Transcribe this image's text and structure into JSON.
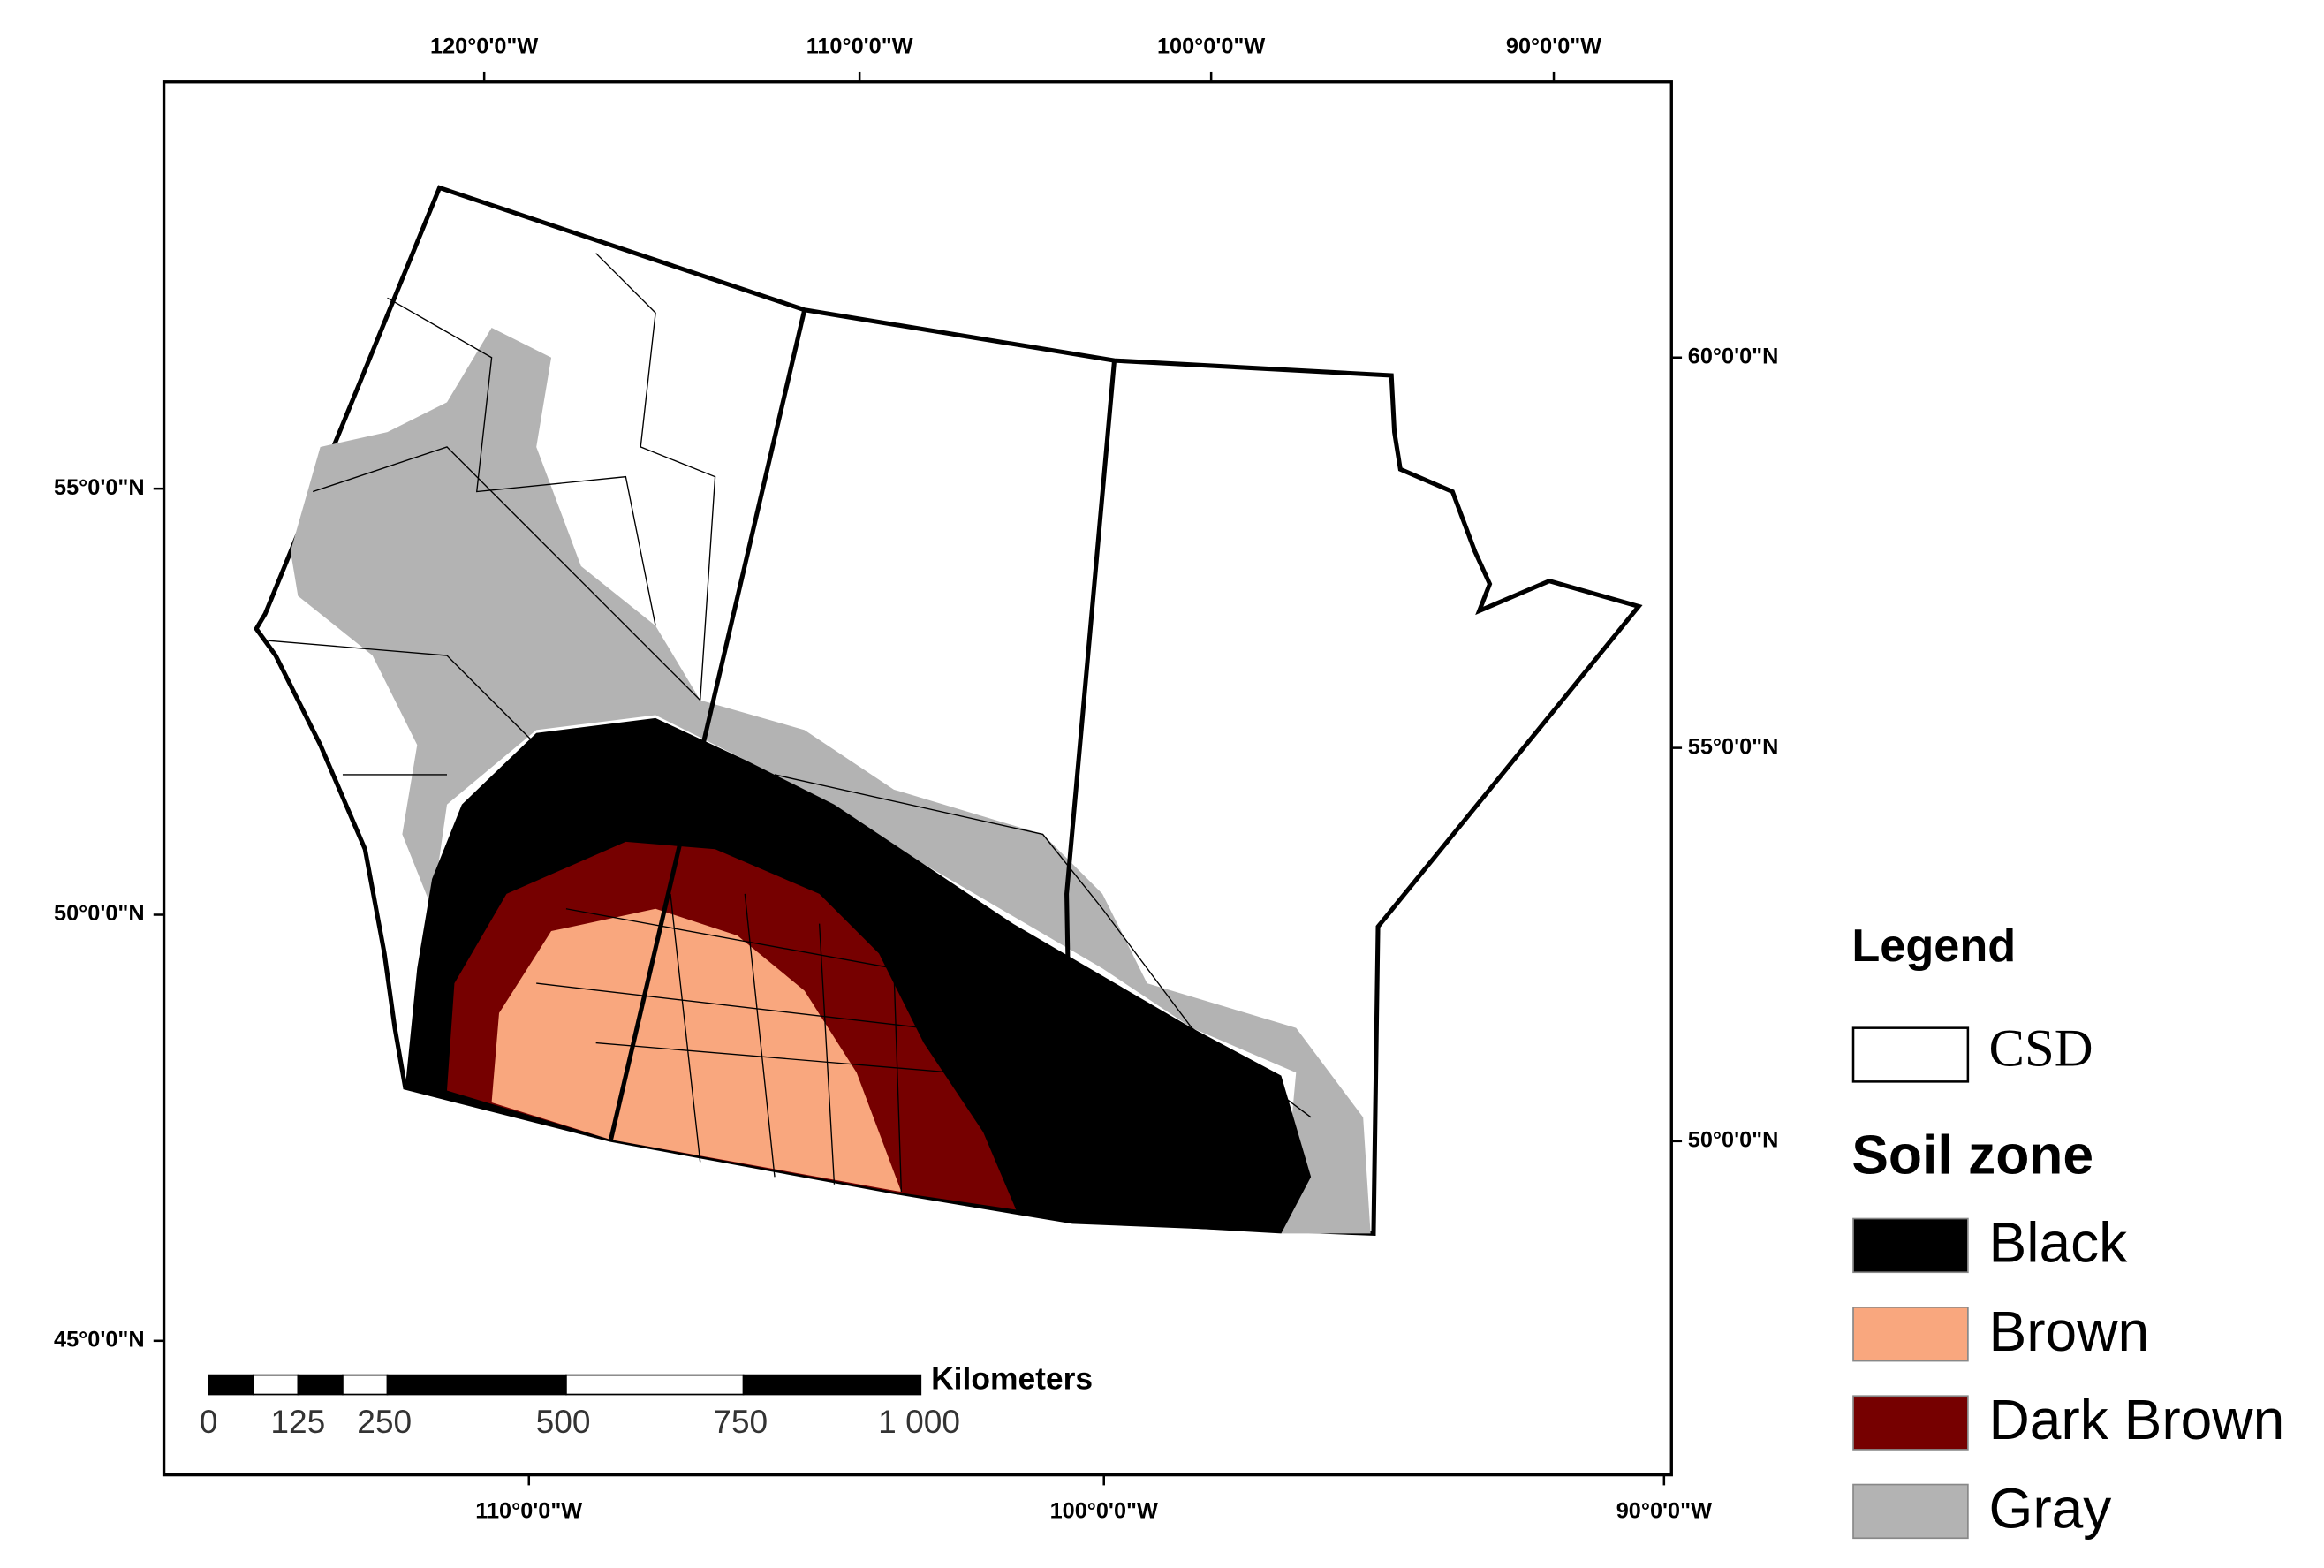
{
  "map": {
    "top_labels": [
      "120°0'0\"W",
      "110°0'0\"W",
      "100°0'0\"W",
      "90°0'0\"W"
    ],
    "bottom_labels": [
      "110°0'0\"W",
      "100°0'0\"W",
      "90°0'0\"W"
    ],
    "left_labels": [
      "55°0'0\"N",
      "50°0'0\"N",
      "45°0'0\"N"
    ],
    "right_labels": [
      "60°0'0\"N",
      "55°0'0\"N",
      "50°0'0\"N"
    ]
  },
  "scale_bar": {
    "unit": "Kilometers",
    "ticks": [
      "0",
      "125",
      "250",
      "500",
      "750",
      "1 000"
    ]
  },
  "legend": {
    "title": "Legend",
    "csd": "CSD",
    "soil_title": "Soil zone",
    "items": [
      {
        "name": "Black",
        "color": "#000000"
      },
      {
        "name": "Brown",
        "color": "#f9a77e"
      },
      {
        "name": "Dark Brown",
        "color": "#760000"
      },
      {
        "name": "Gray",
        "color": "#b3b3b3"
      }
    ]
  }
}
